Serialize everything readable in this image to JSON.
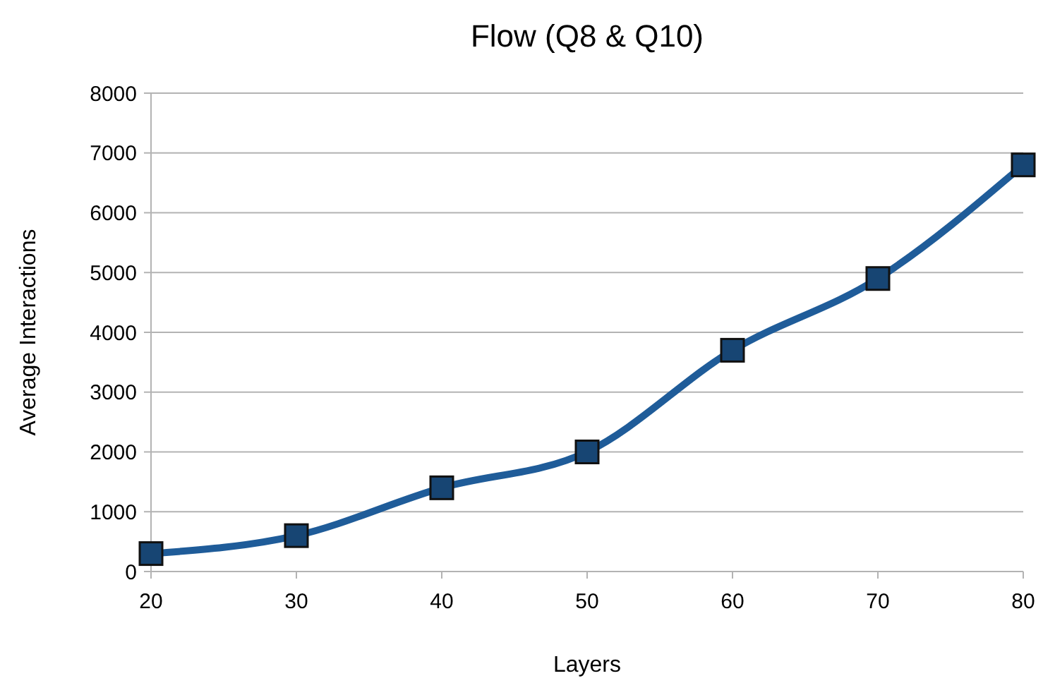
{
  "chart_data": {
    "type": "line",
    "title": "Flow (Q8 & Q10)",
    "xlabel": "Layers",
    "ylabel": "Average Interactions",
    "x": [
      20,
      30,
      40,
      50,
      60,
      70,
      80
    ],
    "series": [
      {
        "color": "#1f5c99",
        "values": [
          300,
          600,
          1400,
          2000,
          3700,
          4900,
          6800
        ]
      }
    ],
    "xlim": [
      20,
      80
    ],
    "xticks": [
      20,
      30,
      40,
      50,
      60,
      70,
      80
    ],
    "ylim": [
      0,
      8000
    ],
    "yticks": [
      0,
      1000,
      2000,
      3000,
      4000,
      5000,
      6000,
      7000,
      8000
    ],
    "grid": "y",
    "marker": "square",
    "line_style": "solid"
  }
}
